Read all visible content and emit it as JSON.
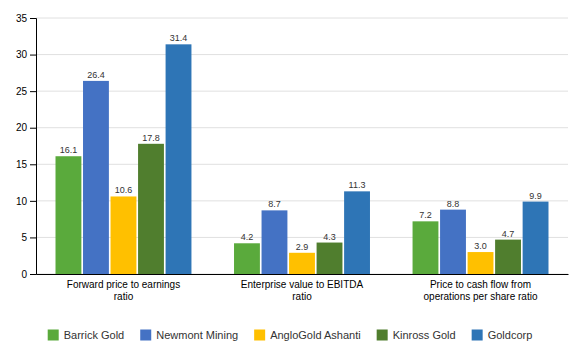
{
  "chart_data": {
    "type": "bar",
    "categories": [
      "Forward price to earnings\nratio",
      "Enterprise value to EBITDA\nratio",
      "Price to cash flow from\noperations per share ratio"
    ],
    "series": [
      {
        "name": "Barrick Gold",
        "color": "#5aaa3c",
        "values": [
          16.1,
          4.2,
          7.2
        ]
      },
      {
        "name": "Newmont Mining",
        "color": "#4472c4",
        "values": [
          26.4,
          8.7,
          8.8
        ]
      },
      {
        "name": "AngloGold Ashanti",
        "color": "#ffc000",
        "values": [
          10.6,
          2.9,
          3.0
        ],
        "value_labels": [
          "10.6",
          "2.9",
          "3.0"
        ]
      },
      {
        "name": "Kinross Gold",
        "color": "#507e2e",
        "values": [
          17.8,
          4.3,
          4.7
        ]
      },
      {
        "name": "Goldcorp",
        "color": "#2e75b6",
        "values": [
          31.4,
          11.3,
          9.9
        ]
      }
    ],
    "ylim": [
      0,
      35
    ],
    "yticks": [
      0,
      5,
      10,
      15,
      20,
      25,
      30,
      35
    ],
    "grid": true,
    "data_labels": true,
    "legend": "bottom"
  }
}
